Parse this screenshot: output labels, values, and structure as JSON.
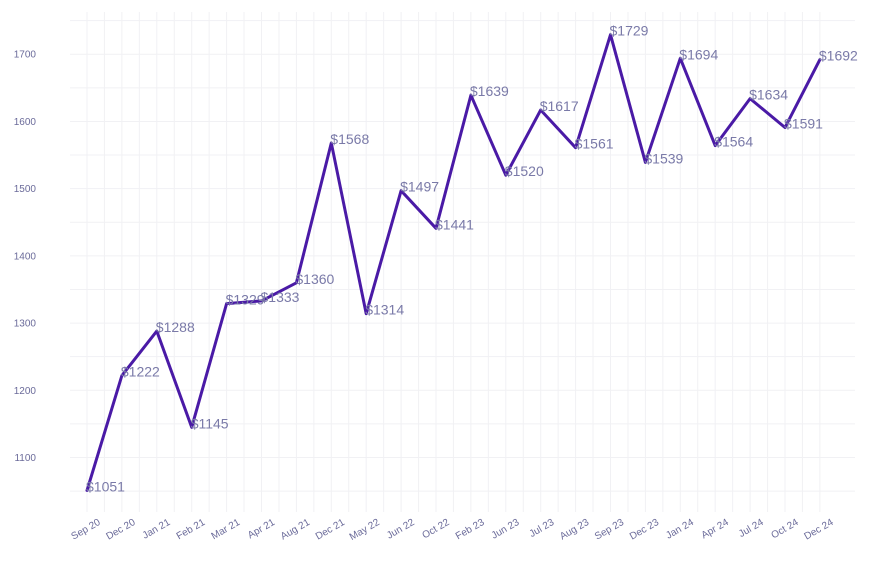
{
  "chart_data": {
    "type": "line",
    "title": "",
    "xlabel": "",
    "ylabel": "",
    "categories": [
      "Sep 20",
      "Dec 20",
      "Jan 21",
      "Feb 21",
      "Mar 21",
      "Apr 21",
      "Aug 21",
      "Dec 21",
      "May 22",
      "Jun 22",
      "Oct 22",
      "Feb 23",
      "Jun 23",
      "Jul 23",
      "Aug 23",
      "Sep 23",
      "Dec 23",
      "Jan 24",
      "Apr 24",
      "Jul 24",
      "Oct 24",
      "Dec 24"
    ],
    "values": [
      1051,
      1222,
      1288,
      1145,
      1329,
      1333,
      1360,
      1568,
      1314,
      1497,
      1441,
      1639,
      1520,
      1617,
      1561,
      1729,
      1539,
      1694,
      1564,
      1634,
      1591,
      1692
    ],
    "data_labels": [
      "$1051",
      "$1222",
      "$1288",
      "$1145",
      "$1329",
      "$1333",
      "$1360",
      "$1568",
      "$1314",
      "$1497",
      "$1441",
      "$1639",
      "$1520",
      "$1617",
      "$1561",
      "$1729",
      "$1539",
      "$1694",
      "$1564",
      "$1634",
      "$1591",
      "$1692"
    ],
    "yticks": [
      1100,
      1200,
      1300,
      1400,
      1500,
      1600,
      1700
    ],
    "ylim": [
      1020,
      1760
    ],
    "grid": true,
    "legend": "none",
    "line_color": "#4a1aa6",
    "label_color": "#7a7aa8"
  }
}
